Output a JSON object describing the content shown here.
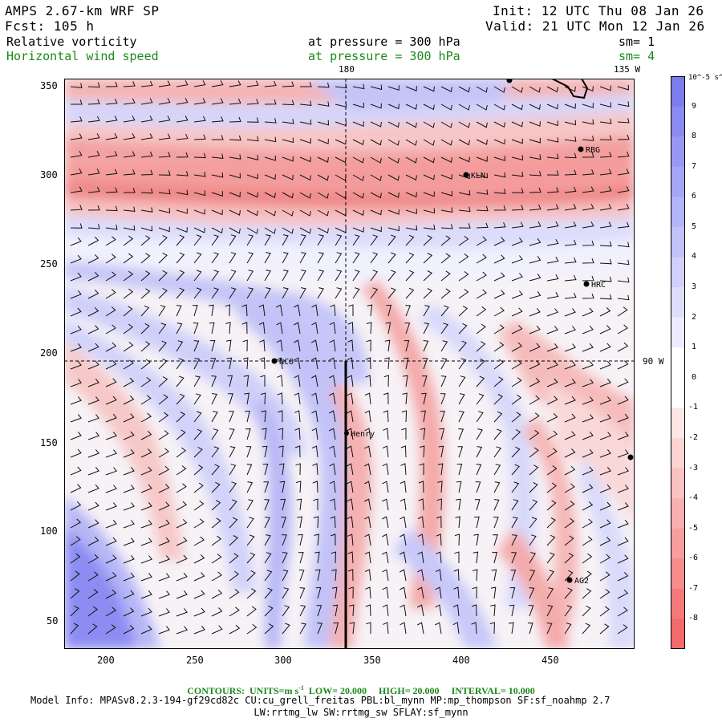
{
  "header": {
    "model": "AMPS 2.67-km WRF SP",
    "forecast": "Fcst:  105 h",
    "init": "Init: 12 UTC Thu 08 Jan 26",
    "valid": "Valid: 21 UTC Mon 12 Jan 26",
    "field1_name": "Relative vorticity",
    "field1_level": "at pressure =  300 hPa",
    "field1_sm": "sm= 1",
    "field2_name": "Horizontal wind speed",
    "field2_level": "at pressure =  300 hPa",
    "field2_sm": "sm= 4"
  },
  "map_labels": {
    "lon_180": "180",
    "lon_135w": "135 W",
    "lon_90w": "90 W"
  },
  "stations": [
    {
      "name": "RBG",
      "x": 463,
      "y": 313
    },
    {
      "name": "KLN",
      "x": 402,
      "y": 300
    },
    {
      "name": "HRC",
      "x": 468,
      "y": 238
    },
    {
      "name": "NCO",
      "x": 293,
      "y": 195
    },
    {
      "name": "Henry",
      "x": 332,
      "y": 155
    },
    {
      "name": "AG2",
      "x": 460,
      "y": 72
    }
  ],
  "axes": {
    "x_ticks": [
      "200",
      "250",
      "300",
      "350",
      "400",
      "450"
    ],
    "y_ticks": [
      "350",
      "300",
      "250",
      "200",
      "150",
      "100",
      "50"
    ],
    "x_range": [
      175,
      495
    ],
    "y_range": [
      33,
      355
    ]
  },
  "colorbar": {
    "unit": "10^-5 s^-1",
    "ticks": [
      "9",
      "8",
      "7",
      "6",
      "5",
      "4",
      "3",
      "2",
      "1",
      "0",
      "-1",
      "-2",
      "-3",
      "-4",
      "-5",
      "-6",
      "-7",
      "-8"
    ],
    "colors": [
      "#7c7cf0",
      "#8a8af2",
      "#9898f4",
      "#a6a6f6",
      "#b4b4f8",
      "#c2c2f9",
      "#d0d0fb",
      "#dedefc",
      "#ececfe",
      "#ffffff",
      "#ffffff",
      "#fde6e6",
      "#fcd4d4",
      "#fbc2c2",
      "#f9b0b0",
      "#f89e9e",
      "#f68c8c",
      "#f47a7a",
      "#f26a6a"
    ]
  },
  "contours": {
    "label": "CONTOURS:",
    "units": "UNITS=m s",
    "units_sup": "-1",
    "low": "LOW=  20.000",
    "high": "HIGH=  20.000",
    "interval": "INTERVAL=   10.000"
  },
  "model_info": {
    "line1": "Model Info: MPASv8.2.3-194-gf29cd82c CU:cu_grell_freitas PBL:bl_mynn MP:mp_thompson SF:sf_noahmp 2.7",
    "line2": "LW:rrtmg_lw SW:rrtmg_sw SFLAY:sf_mynn"
  }
}
